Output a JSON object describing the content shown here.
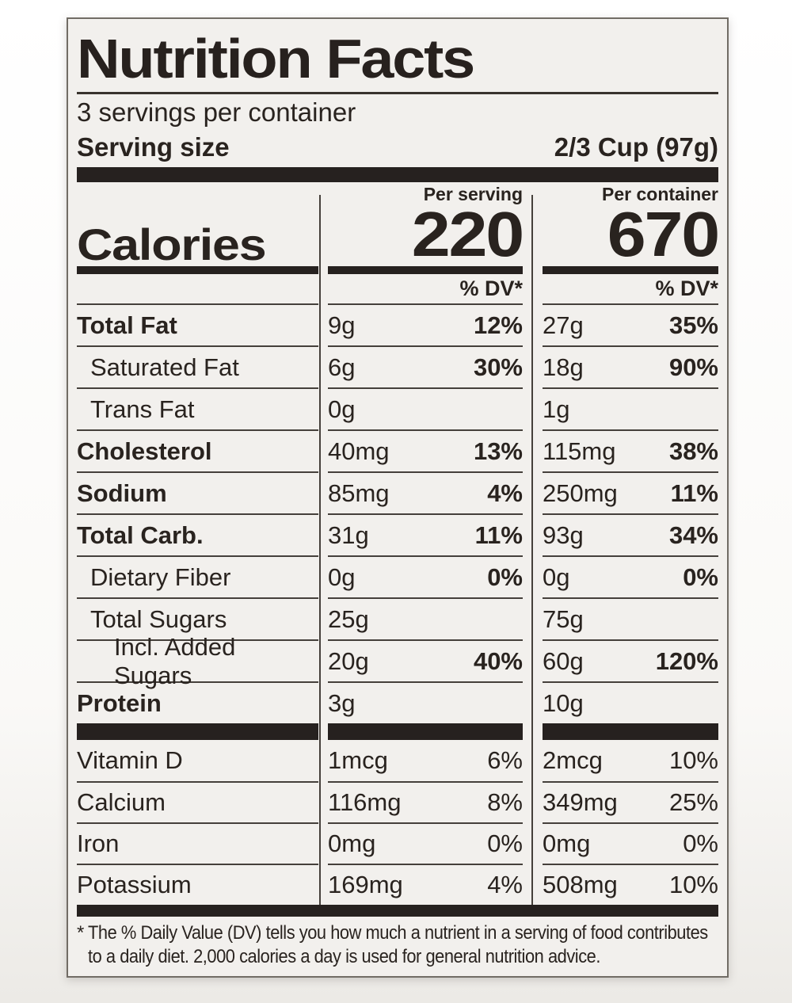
{
  "label": {
    "title": "Nutrition Facts",
    "servings_per_container": "3 servings per container",
    "serving_size": {
      "label": "Serving size",
      "value": "2/3 Cup (97g)"
    },
    "calories": {
      "label": "Calories",
      "serving": {
        "header": "Per serving",
        "value": "220"
      },
      "container": {
        "header": "Per container",
        "value": "670"
      },
      "dv_header": "% DV*"
    },
    "rows": [
      {
        "name": "Total Fat",
        "bold": true,
        "indent": 0,
        "section": "macro",
        "serving_amount": "9g",
        "serving_dv": "12%",
        "container_amount": "27g",
        "container_dv": "35%"
      },
      {
        "name": "Saturated Fat",
        "bold": false,
        "indent": 1,
        "section": "macro",
        "serving_amount": "6g",
        "serving_dv": "30%",
        "container_amount": "18g",
        "container_dv": "90%"
      },
      {
        "name": "Trans Fat",
        "bold": false,
        "indent": 1,
        "section": "macro",
        "serving_amount": "0g",
        "serving_dv": "",
        "container_amount": "1g",
        "container_dv": ""
      },
      {
        "name": "Cholesterol",
        "bold": true,
        "indent": 0,
        "section": "macro",
        "serving_amount": "40mg",
        "serving_dv": "13%",
        "container_amount": "115mg",
        "container_dv": "38%"
      },
      {
        "name": "Sodium",
        "bold": true,
        "indent": 0,
        "section": "macro",
        "serving_amount": "85mg",
        "serving_dv": "4%",
        "container_amount": "250mg",
        "container_dv": "11%"
      },
      {
        "name": "Total Carb.",
        "bold": true,
        "indent": 0,
        "section": "macro",
        "serving_amount": "31g",
        "serving_dv": "11%",
        "container_amount": "93g",
        "container_dv": "34%"
      },
      {
        "name": "Dietary Fiber",
        "bold": false,
        "indent": 1,
        "section": "macro",
        "serving_amount": "0g",
        "serving_dv": "0%",
        "container_amount": "0g",
        "container_dv": "0%"
      },
      {
        "name": "Total Sugars",
        "bold": false,
        "indent": 1,
        "section": "macro",
        "serving_amount": "25g",
        "serving_dv": "",
        "container_amount": "75g",
        "container_dv": ""
      },
      {
        "name": "Incl. Added Sugars",
        "bold": false,
        "indent": 2,
        "section": "macro",
        "serving_amount": "20g",
        "serving_dv": "40%",
        "container_amount": "60g",
        "container_dv": "120%"
      },
      {
        "name": "Protein",
        "bold": true,
        "indent": 0,
        "section": "macro",
        "serving_amount": "3g",
        "serving_dv": "",
        "container_amount": "10g",
        "container_dv": ""
      },
      {
        "name": "Vitamin D",
        "bold": false,
        "indent": 0,
        "section": "micro",
        "serving_amount": "1mcg",
        "serving_dv": "6%",
        "container_amount": "2mcg",
        "container_dv": "10%"
      },
      {
        "name": "Calcium",
        "bold": false,
        "indent": 0,
        "section": "micro",
        "serving_amount": "116mg",
        "serving_dv": "8%",
        "container_amount": "349mg",
        "container_dv": "25%"
      },
      {
        "name": "Iron",
        "bold": false,
        "indent": 0,
        "section": "micro",
        "serving_amount": "0mg",
        "serving_dv": "0%",
        "container_amount": "0mg",
        "container_dv": "0%"
      },
      {
        "name": "Potassium",
        "bold": false,
        "indent": 0,
        "section": "micro",
        "serving_amount": "169mg",
        "serving_dv": "4%",
        "container_amount": "508mg",
        "container_dv": "10%"
      }
    ],
    "footnote": {
      "marker": "*",
      "lines": [
        "The % Daily Value (DV) tells you how much a nutrient in a serving of food contributes",
        "to a daily diet. 2,000 calories a day is used for general nutrition advice."
      ]
    },
    "colors": {
      "label_background": "#f2f0ed",
      "text": "#29231f",
      "thick_bar": "#26211f",
      "thin_rule": "#45403b"
    }
  }
}
